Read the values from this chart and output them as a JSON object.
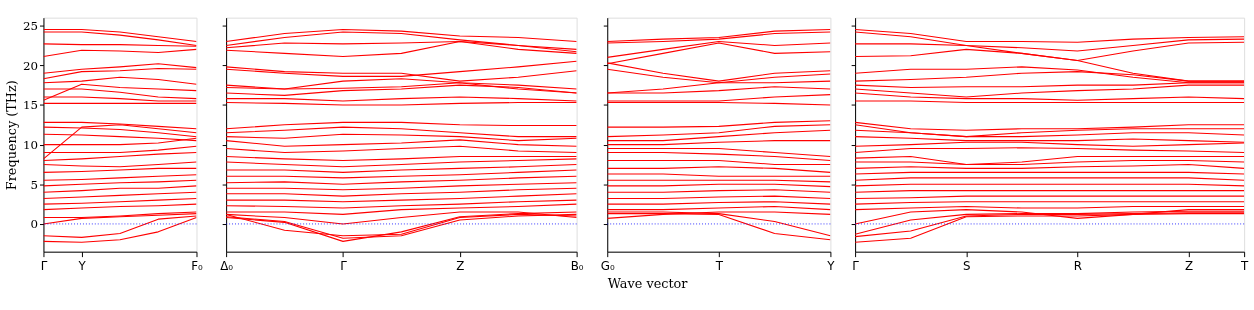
{
  "chart_data": [
    {
      "type": "line",
      "ylabel": "Frequency (THz)",
      "categories": [
        "Γ",
        "Y",
        null,
        null,
        "F₀"
      ],
      "ylim": [
        -3.5,
        26
      ],
      "yticks": [
        0,
        5,
        10,
        15,
        20,
        25
      ],
      "legend": false,
      "line_style": "solid",
      "marker": "none",
      "ref_lines": [
        {
          "axis": "y",
          "value": 0,
          "color": "#0000ff",
          "line_style": "dotted"
        }
      ],
      "series": [
        {
          "color": "#ff0000",
          "values": [
            24.5,
            24.5,
            24.2,
            23.6,
            23.0
          ]
        },
        {
          "color": "#ff0000",
          "values": [
            24.2,
            24.2,
            23.8,
            23.2,
            22.5
          ]
        },
        {
          "color": "#ff0000",
          "values": [
            22.7,
            22.6,
            22.6,
            22.5,
            22.4
          ]
        },
        {
          "color": "#ff0000",
          "values": [
            21.1,
            21.9,
            21.8,
            21.6,
            22.0
          ]
        },
        {
          "color": "#ff0000",
          "values": [
            19.0,
            19.5,
            19.8,
            20.2,
            19.7
          ]
        },
        {
          "color": "#ff0000",
          "values": [
            18.3,
            19.2,
            19.3,
            19.6,
            19.5
          ]
        },
        {
          "color": "#ff0000",
          "values": [
            17.8,
            18.0,
            18.5,
            18.2,
            17.6
          ]
        },
        {
          "color": "#ff0000",
          "values": [
            15.6,
            17.6,
            17.2,
            17.0,
            16.8
          ]
        },
        {
          "color": "#ff0000",
          "values": [
            17.0,
            17.0,
            16.6,
            16.0,
            15.8
          ]
        },
        {
          "color": "#ff0000",
          "values": [
            16.0,
            16.0,
            15.8,
            15.5,
            15.5
          ]
        },
        {
          "color": "#ff0000",
          "values": [
            15.2,
            15.2,
            15.2,
            15.2,
            15.2
          ]
        },
        {
          "color": "#ff0000",
          "values": [
            12.8,
            12.8,
            12.6,
            12.3,
            12.0
          ]
        },
        {
          "color": "#ff0000",
          "values": [
            8.2,
            12.2,
            12.5,
            12.0,
            11.5
          ]
        },
        {
          "color": "#ff0000",
          "values": [
            12.2,
            12.1,
            11.9,
            11.5,
            11.0
          ]
        },
        {
          "color": "#ff0000",
          "values": [
            11.3,
            11.2,
            11.0,
            10.8,
            10.5
          ]
        },
        {
          "color": "#ff0000",
          "values": [
            10.0,
            10.0,
            10.0,
            10.2,
            10.8
          ]
        },
        {
          "color": "#ff0000",
          "values": [
            9.0,
            9.0,
            9.0,
            9.3,
            9.8
          ]
        },
        {
          "color": "#ff0000",
          "values": [
            8.0,
            8.2,
            8.5,
            8.8,
            9.0
          ]
        },
        {
          "color": "#ff0000",
          "values": [
            7.5,
            7.3,
            7.2,
            7.5,
            7.8
          ]
        },
        {
          "color": "#ff0000",
          "values": [
            6.5,
            6.6,
            6.8,
            7.0,
            7.0
          ]
        },
        {
          "color": "#ff0000",
          "values": [
            5.5,
            5.6,
            5.8,
            6.0,
            6.2
          ]
        },
        {
          "color": "#ff0000",
          "values": [
            4.8,
            5.0,
            5.2,
            5.3,
            5.5
          ]
        },
        {
          "color": "#ff0000",
          "values": [
            4.0,
            4.2,
            4.5,
            4.5,
            4.8
          ]
        },
        {
          "color": "#ff0000",
          "values": [
            3.2,
            3.4,
            3.6,
            3.8,
            4.0
          ]
        },
        {
          "color": "#ff0000",
          "values": [
            2.5,
            2.6,
            2.8,
            3.0,
            3.2
          ]
        },
        {
          "color": "#ff0000",
          "values": [
            1.8,
            2.0,
            2.2,
            2.3,
            2.5
          ]
        },
        {
          "color": "#ff0000",
          "values": [
            0.8,
            0.8,
            1.0,
            1.3,
            1.5
          ]
        },
        {
          "color": "#ff0000",
          "values": [
            0.0,
            0.7,
            0.9,
            1.1,
            1.3
          ]
        },
        {
          "color": "#ff0000",
          "values": [
            -1.5,
            -1.7,
            -1.2,
            0.6,
            1.0
          ]
        },
        {
          "color": "#ff0000",
          "values": [
            -2.2,
            -2.3,
            -2.0,
            -1.0,
            0.8
          ]
        }
      ]
    },
    {
      "type": "line",
      "categories": [
        "Δ₀",
        null,
        "Γ",
        null,
        "Z",
        null,
        "B₀"
      ],
      "ylim": [
        -3.5,
        26
      ],
      "yticks": [
        0,
        5,
        10,
        15,
        20,
        25
      ],
      "tick_labels": "x",
      "legend": false,
      "line_style": "solid",
      "marker": "none",
      "ref_lines": [
        {
          "axis": "y",
          "value": 0,
          "color": "#0000ff",
          "line_style": "dotted"
        }
      ],
      "series": [
        {
          "color": "#ff0000",
          "values": [
            23.0,
            24.0,
            24.5,
            24.3,
            23.7,
            23.5,
            23.0
          ]
        },
        {
          "color": "#ff0000",
          "values": [
            22.5,
            23.5,
            24.2,
            24.0,
            23.2,
            22.5,
            21.7
          ]
        },
        {
          "color": "#ff0000",
          "values": [
            22.2,
            22.8,
            22.7,
            22.8,
            23.0,
            22.5,
            22.0
          ]
        },
        {
          "color": "#ff0000",
          "values": [
            21.9,
            21.5,
            21.1,
            21.5,
            23.0,
            22.0,
            21.5
          ]
        },
        {
          "color": "#ff0000",
          "values": [
            19.5,
            19.0,
            18.6,
            18.6,
            19.2,
            19.8,
            20.5
          ]
        },
        {
          "color": "#ff0000",
          "values": [
            19.8,
            19.2,
            19.0,
            19.0,
            18.0,
            18.5,
            19.3
          ]
        },
        {
          "color": "#ff0000",
          "values": [
            17.5,
            17.0,
            18.0,
            18.3,
            17.8,
            17.5,
            17.0
          ]
        },
        {
          "color": "#ff0000",
          "values": [
            17.2,
            17.0,
            17.1,
            17.3,
            17.8,
            17.0,
            16.5
          ]
        },
        {
          "color": "#ff0000",
          "values": [
            16.5,
            16.2,
            16.8,
            17.0,
            17.5,
            17.2,
            16.5
          ]
        },
        {
          "color": "#ff0000",
          "values": [
            15.8,
            15.8,
            15.5,
            15.8,
            16.0,
            15.8,
            15.5
          ]
        },
        {
          "color": "#ff0000",
          "values": [
            15.3,
            15.2,
            15.0,
            15.0,
            15.2,
            15.3,
            15.3
          ]
        },
        {
          "color": "#ff0000",
          "values": [
            12.0,
            12.5,
            12.8,
            12.8,
            12.5,
            12.4,
            12.4
          ]
        },
        {
          "color": "#ff0000",
          "values": [
            11.5,
            11.8,
            12.2,
            12.0,
            11.5,
            11.0,
            11.0
          ]
        },
        {
          "color": "#ff0000",
          "values": [
            11.0,
            10.8,
            11.3,
            11.2,
            11.0,
            10.5,
            10.8
          ]
        },
        {
          "color": "#ff0000",
          "values": [
            10.5,
            9.8,
            10.0,
            10.2,
            10.6,
            10.0,
            9.8
          ]
        },
        {
          "color": "#ff0000",
          "values": [
            9.5,
            9.0,
            9.2,
            9.5,
            9.8,
            9.2,
            9.0
          ]
        },
        {
          "color": "#ff0000",
          "values": [
            8.5,
            8.2,
            8.0,
            8.2,
            8.5,
            8.5,
            8.5
          ]
        },
        {
          "color": "#ff0000",
          "values": [
            7.8,
            7.5,
            7.2,
            7.5,
            7.8,
            8.0,
            8.2
          ]
        },
        {
          "color": "#ff0000",
          "values": [
            6.8,
            6.8,
            6.5,
            6.8,
            7.0,
            7.2,
            7.5
          ]
        },
        {
          "color": "#ff0000",
          "values": [
            6.0,
            6.0,
            5.8,
            6.0,
            6.2,
            6.5,
            6.8
          ]
        },
        {
          "color": "#ff0000",
          "values": [
            5.2,
            5.3,
            5.0,
            5.3,
            5.5,
            5.8,
            6.0
          ]
        },
        {
          "color": "#ff0000",
          "values": [
            4.5,
            4.5,
            4.3,
            4.5,
            4.8,
            5.0,
            5.2
          ]
        },
        {
          "color": "#ff0000",
          "values": [
            3.8,
            3.8,
            3.5,
            3.8,
            4.0,
            4.3,
            4.5
          ]
        },
        {
          "color": "#ff0000",
          "values": [
            3.0,
            3.0,
            2.8,
            3.0,
            3.2,
            3.5,
            3.8
          ]
        },
        {
          "color": "#ff0000",
          "values": [
            2.3,
            2.2,
            2.0,
            2.3,
            2.5,
            2.8,
            3.0
          ]
        },
        {
          "color": "#ff0000",
          "values": [
            1.5,
            1.5,
            1.2,
            1.8,
            2.0,
            2.2,
            2.5
          ]
        },
        {
          "color": "#ff0000",
          "values": [
            1.2,
            0.8,
            0.0,
            0.8,
            1.5,
            1.5,
            0.8
          ]
        },
        {
          "color": "#ff0000",
          "values": [
            1.2,
            -0.8,
            -1.5,
            -1.3,
            0.8,
            1.2,
            1.0
          ]
        },
        {
          "color": "#ff0000",
          "values": [
            0.9,
            0.3,
            -1.8,
            -1.5,
            0.5,
            1.0,
            1.2
          ]
        },
        {
          "color": "#ff0000",
          "values": [
            0.8,
            0.2,
            -2.2,
            -1.0,
            0.9,
            1.3,
            1.5
          ]
        }
      ]
    },
    {
      "type": "line",
      "xlabel": "Wave vector",
      "categories": [
        "G₀",
        null,
        "T",
        null,
        "Y"
      ],
      "ylim": [
        -3.5,
        26
      ],
      "yticks": [
        0,
        5,
        10,
        15,
        20,
        25
      ],
      "tick_labels": "x",
      "legend": false,
      "line_style": "solid",
      "marker": "none",
      "ref_lines": [
        {
          "axis": "y",
          "value": 0,
          "color": "#0000ff",
          "line_style": "dotted"
        }
      ],
      "series": [
        {
          "color": "#ff0000",
          "values": [
            23.0,
            23.3,
            23.5,
            24.3,
            24.5
          ]
        },
        {
          "color": "#ff0000",
          "values": [
            22.8,
            23.0,
            23.3,
            24.0,
            24.2
          ]
        },
        {
          "color": "#ff0000",
          "values": [
            21.0,
            22.0,
            23.0,
            22.5,
            22.8
          ]
        },
        {
          "color": "#ff0000",
          "values": [
            20.2,
            21.5,
            22.8,
            21.5,
            21.7
          ]
        },
        {
          "color": "#ff0000",
          "values": [
            20.3,
            19.0,
            18.0,
            19.0,
            19.3
          ]
        },
        {
          "color": "#ff0000",
          "values": [
            19.5,
            18.5,
            17.8,
            18.5,
            18.9
          ]
        },
        {
          "color": "#ff0000",
          "values": [
            16.5,
            17.0,
            17.8,
            17.8,
            18.0
          ]
        },
        {
          "color": "#ff0000",
          "values": [
            16.5,
            16.5,
            16.8,
            17.3,
            17.0
          ]
        },
        {
          "color": "#ff0000",
          "values": [
            15.5,
            15.5,
            15.5,
            16.0,
            16.3
          ]
        },
        {
          "color": "#ff0000",
          "values": [
            15.3,
            15.3,
            15.3,
            15.2,
            15.0
          ]
        },
        {
          "color": "#ff0000",
          "values": [
            12.2,
            12.2,
            12.3,
            12.8,
            13.0
          ]
        },
        {
          "color": "#ff0000",
          "values": [
            11.0,
            11.2,
            11.5,
            12.3,
            12.5
          ]
        },
        {
          "color": "#ff0000",
          "values": [
            10.5,
            10.5,
            11.0,
            11.5,
            11.8
          ]
        },
        {
          "color": "#ff0000",
          "values": [
            10.0,
            10.0,
            10.3,
            10.5,
            10.5
          ]
        },
        {
          "color": "#ff0000",
          "values": [
            9.5,
            9.5,
            9.5,
            9.0,
            8.5
          ]
        },
        {
          "color": "#ff0000",
          "values": [
            9.0,
            9.0,
            8.8,
            8.5,
            8.0
          ]
        },
        {
          "color": "#ff0000",
          "values": [
            8.0,
            8.0,
            8.0,
            7.5,
            7.5
          ]
        },
        {
          "color": "#ff0000",
          "values": [
            7.0,
            7.0,
            7.2,
            7.0,
            6.5
          ]
        },
        {
          "color": "#ff0000",
          "values": [
            6.3,
            6.3,
            6.0,
            6.0,
            6.0
          ]
        },
        {
          "color": "#ff0000",
          "values": [
            5.5,
            5.5,
            5.5,
            5.5,
            5.3
          ]
        },
        {
          "color": "#ff0000",
          "values": [
            4.8,
            4.8,
            5.0,
            5.0,
            4.7
          ]
        },
        {
          "color": "#ff0000",
          "values": [
            4.0,
            4.0,
            4.2,
            4.3,
            4.0
          ]
        },
        {
          "color": "#ff0000",
          "values": [
            3.2,
            3.2,
            3.4,
            3.5,
            3.2
          ]
        },
        {
          "color": "#ff0000",
          "values": [
            2.5,
            2.5,
            2.7,
            2.8,
            2.5
          ]
        },
        {
          "color": "#ff0000",
          "values": [
            1.8,
            1.8,
            2.0,
            2.2,
            1.8
          ]
        },
        {
          "color": "#ff0000",
          "values": [
            0.7,
            1.2,
            1.5,
            1.5,
            1.2
          ]
        },
        {
          "color": "#ff0000",
          "values": [
            1.3,
            1.3,
            1.2,
            -1.2,
            -2.0
          ]
        },
        {
          "color": "#ff0000",
          "values": [
            1.5,
            1.5,
            1.3,
            0.3,
            -1.5
          ]
        }
      ]
    },
    {
      "type": "line",
      "categories": [
        "Γ",
        null,
        "S",
        null,
        "R",
        null,
        "Z",
        "T"
      ],
      "ylim": [
        -3.5,
        26
      ],
      "yticks": [
        0,
        5,
        10,
        15,
        20,
        25
      ],
      "tick_labels": "x",
      "legend": false,
      "line_style": "solid",
      "marker": "none",
      "ref_lines": [
        {
          "axis": "y",
          "value": 0,
          "color": "#0000ff",
          "line_style": "dotted"
        }
      ],
      "series": [
        {
          "color": "#ff0000",
          "values": [
            24.5,
            24.0,
            23.0,
            23.0,
            22.9,
            23.3,
            23.5,
            23.6
          ]
        },
        {
          "color": "#ff0000",
          "values": [
            24.2,
            23.6,
            22.5,
            22.2,
            21.8,
            22.5,
            23.2,
            23.3
          ]
        },
        {
          "color": "#ff0000",
          "values": [
            22.7,
            22.7,
            22.5,
            21.5,
            20.6,
            19.0,
            18.0,
            18.0
          ]
        },
        {
          "color": "#ff0000",
          "values": [
            21.1,
            21.2,
            22.0,
            21.5,
            20.6,
            21.8,
            22.8,
            22.9
          ]
        },
        {
          "color": "#ff0000",
          "values": [
            19.0,
            19.5,
            19.5,
            19.8,
            19.4,
            18.5,
            17.8,
            17.8
          ]
        },
        {
          "color": "#ff0000",
          "values": [
            18.0,
            18.2,
            18.5,
            19.0,
            19.2,
            18.8,
            18.0,
            18.0
          ]
        },
        {
          "color": "#ff0000",
          "values": [
            17.5,
            17.2,
            17.3,
            17.3,
            17.5,
            17.5,
            17.8,
            17.8
          ]
        },
        {
          "color": "#ff0000",
          "values": [
            17.0,
            16.5,
            16.0,
            16.5,
            16.8,
            17.0,
            17.5,
            17.5
          ]
        },
        {
          "color": "#ff0000",
          "values": [
            16.5,
            16.0,
            15.8,
            15.8,
            15.6,
            15.8,
            16.0,
            15.8
          ]
        },
        {
          "color": "#ff0000",
          "values": [
            15.5,
            15.5,
            15.3,
            15.3,
            15.3,
            15.3,
            15.3,
            15.3
          ]
        },
        {
          "color": "#ff0000",
          "values": [
            12.8,
            12.0,
            11.8,
            12.0,
            12.0,
            12.2,
            12.5,
            12.5
          ]
        },
        {
          "color": "#ff0000",
          "values": [
            12.5,
            11.5,
            11.0,
            11.5,
            11.8,
            12.0,
            12.0,
            12.0
          ]
        },
        {
          "color": "#ff0000",
          "values": [
            11.8,
            11.5,
            11.0,
            11.0,
            11.2,
            11.5,
            11.5,
            11.2
          ]
        },
        {
          "color": "#ff0000",
          "values": [
            11.0,
            10.8,
            10.5,
            10.5,
            10.5,
            10.7,
            10.5,
            10.3
          ]
        },
        {
          "color": "#ff0000",
          "values": [
            9.8,
            10.0,
            10.3,
            10.3,
            10.0,
            9.8,
            10.0,
            10.2
          ]
        },
        {
          "color": "#ff0000",
          "values": [
            9.0,
            9.5,
            9.5,
            9.6,
            9.5,
            9.3,
            9.2,
            9.0
          ]
        },
        {
          "color": "#ff0000",
          "values": [
            8.3,
            8.5,
            7.5,
            7.8,
            8.5,
            8.5,
            8.5,
            8.5
          ]
        },
        {
          "color": "#ff0000",
          "values": [
            7.8,
            7.8,
            7.5,
            7.5,
            7.8,
            8.0,
            8.0,
            7.8
          ]
        },
        {
          "color": "#ff0000",
          "values": [
            7.0,
            7.2,
            7.0,
            7.0,
            7.2,
            7.3,
            7.5,
            7.0
          ]
        },
        {
          "color": "#ff0000",
          "values": [
            6.3,
            6.5,
            6.5,
            6.5,
            6.5,
            6.5,
            6.5,
            6.3
          ]
        },
        {
          "color": "#ff0000",
          "values": [
            5.5,
            5.8,
            5.8,
            5.8,
            5.8,
            5.8,
            5.8,
            5.5
          ]
        },
        {
          "color": "#ff0000",
          "values": [
            4.8,
            5.0,
            5.0,
            5.0,
            5.0,
            5.0,
            5.0,
            4.8
          ]
        },
        {
          "color": "#ff0000",
          "values": [
            4.0,
            4.2,
            4.2,
            4.2,
            4.2,
            4.2,
            4.2,
            4.2
          ]
        },
        {
          "color": "#ff0000",
          "values": [
            3.2,
            3.3,
            3.5,
            3.5,
            3.5,
            3.5,
            3.5,
            3.5
          ]
        },
        {
          "color": "#ff0000",
          "values": [
            2.5,
            2.7,
            2.8,
            2.8,
            2.8,
            2.8,
            2.8,
            2.8
          ]
        },
        {
          "color": "#ff0000",
          "values": [
            1.8,
            2.0,
            2.2,
            2.0,
            2.0,
            2.2,
            2.2,
            2.2
          ]
        },
        {
          "color": "#ff0000",
          "values": [
            0.0,
            1.5,
            1.8,
            1.5,
            0.7,
            1.2,
            1.8,
            1.8
          ]
        },
        {
          "color": "#ff0000",
          "values": [
            -1.3,
            0.5,
            1.2,
            1.3,
            1.3,
            1.5,
            1.6,
            1.6
          ]
        },
        {
          "color": "#ff0000",
          "values": [
            -1.6,
            -0.9,
            1.0,
            1.2,
            1.2,
            1.3,
            1.4,
            1.4
          ]
        },
        {
          "color": "#ff0000",
          "values": [
            -2.3,
            -1.8,
            0.9,
            1.0,
            1.0,
            1.2,
            1.3,
            1.3
          ]
        }
      ]
    }
  ]
}
